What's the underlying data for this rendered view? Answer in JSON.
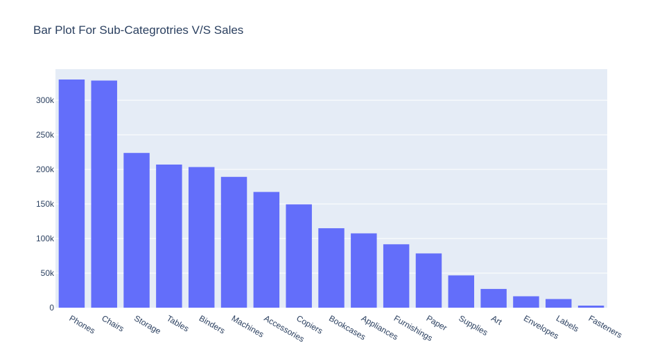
{
  "chart_data": {
    "type": "bar",
    "title": "Bar Plot For Sub-Categrotries V/S Sales",
    "categories": [
      "Phones",
      "Chairs",
      "Storage",
      "Tables",
      "Binders",
      "Machines",
      "Accessories",
      "Copiers",
      "Bookcases",
      "Appliances",
      "Furnishings",
      "Paper",
      "Supplies",
      "Art",
      "Envelopes",
      "Labels",
      "Fasteners"
    ],
    "values": [
      330000,
      328500,
      223800,
      207000,
      203400,
      189200,
      167400,
      149500,
      114900,
      107500,
      91700,
      78500,
      46700,
      27100,
      16500,
      12500,
      3000
    ],
    "ylim": [
      0,
      345000
    ],
    "yticks": [
      0,
      50000,
      100000,
      150000,
      200000,
      250000,
      300000
    ],
    "ytick_labels": [
      "0",
      "50k",
      "100k",
      "150k",
      "200k",
      "250k",
      "300k"
    ],
    "xlabel": "",
    "ylabel": "",
    "grid": true,
    "colors": {
      "bar": "#636efa",
      "plot_bg": "#e5ecf6",
      "grid": "#ffffff",
      "text": "#2a3f5f"
    }
  }
}
